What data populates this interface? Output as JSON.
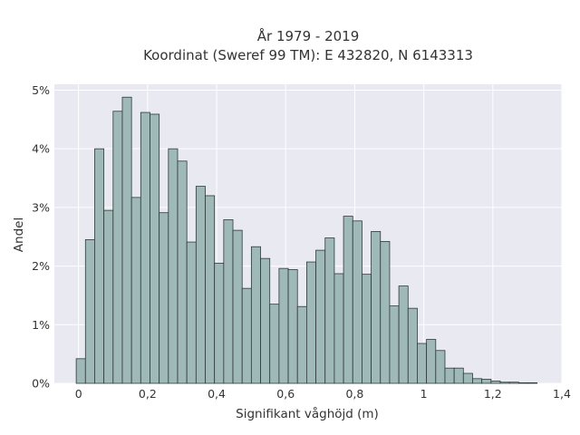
{
  "chart_data": {
    "type": "bar",
    "title_lines": [
      "År 1979 - 2019",
      "Koordinat (Sweref 99 TM): E 432820, N 6143313"
    ],
    "xlabel": "Signifikant våghöjd (m)",
    "ylabel": "Andel",
    "xlim": [
      -0.07,
      1.4
    ],
    "ylim": [
      0,
      5.1
    ],
    "x_ticks": [
      0,
      0.2,
      0.4,
      0.6,
      0.8,
      1.0,
      1.2,
      1.4
    ],
    "x_tick_labels": [
      "0",
      "0,2",
      "0,4",
      "0,6",
      "0,8",
      "1",
      "1,2",
      "1,4"
    ],
    "y_ticks": [
      0,
      1,
      2,
      3,
      4,
      5
    ],
    "y_tick_labels": [
      "0%",
      "1%",
      "2%",
      "3%",
      "4%",
      "5%"
    ],
    "bin_width": 0.0267,
    "bin_start": -0.0067,
    "values": [
      0.42,
      2.45,
      4.0,
      2.95,
      4.64,
      4.88,
      3.17,
      4.62,
      4.59,
      2.91,
      4.0,
      3.79,
      2.41,
      3.36,
      3.2,
      2.05,
      2.79,
      2.61,
      1.62,
      2.33,
      2.13,
      1.35,
      1.96,
      1.94,
      1.31,
      2.07,
      2.27,
      2.48,
      1.87,
      2.85,
      2.77,
      1.86,
      2.59,
      2.42,
      1.32,
      1.66,
      1.28,
      0.68,
      0.75,
      0.56,
      0.26,
      0.26,
      0.17,
      0.08,
      0.07,
      0.04,
      0.02,
      0.02,
      0.01,
      0.01
    ],
    "grid": true,
    "legend": "none",
    "colors": {
      "bar_fill": "#9fb8b8",
      "bar_edge": "#2f3a3a",
      "plot_bg": "#e9e9f1",
      "grid": "#ffffff"
    }
  }
}
